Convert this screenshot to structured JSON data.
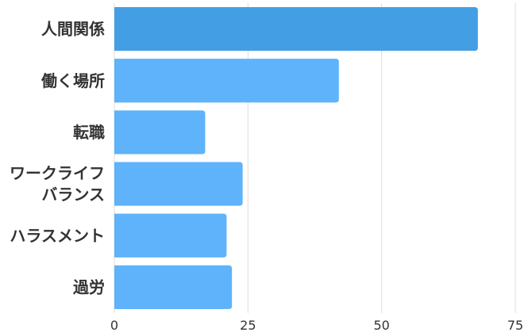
{
  "chart_data": {
    "type": "bar",
    "orientation": "horizontal",
    "categories": [
      [
        "人間関係"
      ],
      [
        "働く場所"
      ],
      [
        "転職"
      ],
      [
        "ワークライフ",
        "バランス"
      ],
      [
        "ハラスメント"
      ],
      [
        "過労"
      ]
    ],
    "values": [
      68,
      42,
      17,
      24,
      21,
      22
    ],
    "xlim": [
      0,
      75
    ],
    "xticks": [
      0,
      25,
      50,
      75
    ],
    "grid": true,
    "legend": "none",
    "title": "",
    "xlabel": "",
    "ylabel": "",
    "colors": {
      "bar": "#5eb3fb",
      "bar_highlight": "#439ee4",
      "grid": "#dddddd",
      "text": "#333333"
    },
    "highlight_index": 0
  }
}
